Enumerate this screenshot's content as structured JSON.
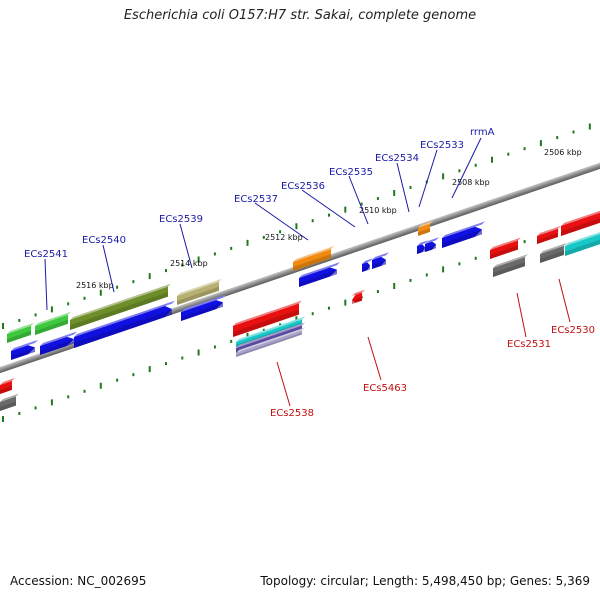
{
  "title": "Escherichia coli O157:H7 str. Sakai, complete genome",
  "footer": {
    "accession": "Accession: NC_002695",
    "topology": "Topology: circular; Length: 5,498,450 bp; Genes: 5,369"
  },
  "colors": {
    "backbone": "#8c8c8c",
    "tick": "#1e7a1e",
    "forward_label": "#1a1aa6",
    "reverse_label": "#c01010",
    "blue": "#1010e0",
    "green": "#3ec83e",
    "olive": "#6e8e2a",
    "khaki": "#b8b070",
    "orange": "#f08a10",
    "red": "#e81010",
    "gray": "#6a6a6a",
    "cyan": "#18c8c8",
    "lavender": "#a8a0c8"
  },
  "scale": {
    "unit": "kbp",
    "labels": [
      "2506 kbp",
      "2508 kbp",
      "2510 kbp",
      "2512 kbp",
      "2514 kbp",
      "2516 kbp"
    ]
  },
  "forward_genes": [
    "rrmA",
    "ECs2533",
    "ECs2534",
    "ECs2535",
    "ECs2536",
    "ECs2537",
    "ECs2539",
    "ECs2540",
    "ECs2541"
  ],
  "reverse_genes": [
    "ECs2530",
    "ECs2531",
    "ECs5463",
    "ECs2538"
  ]
}
